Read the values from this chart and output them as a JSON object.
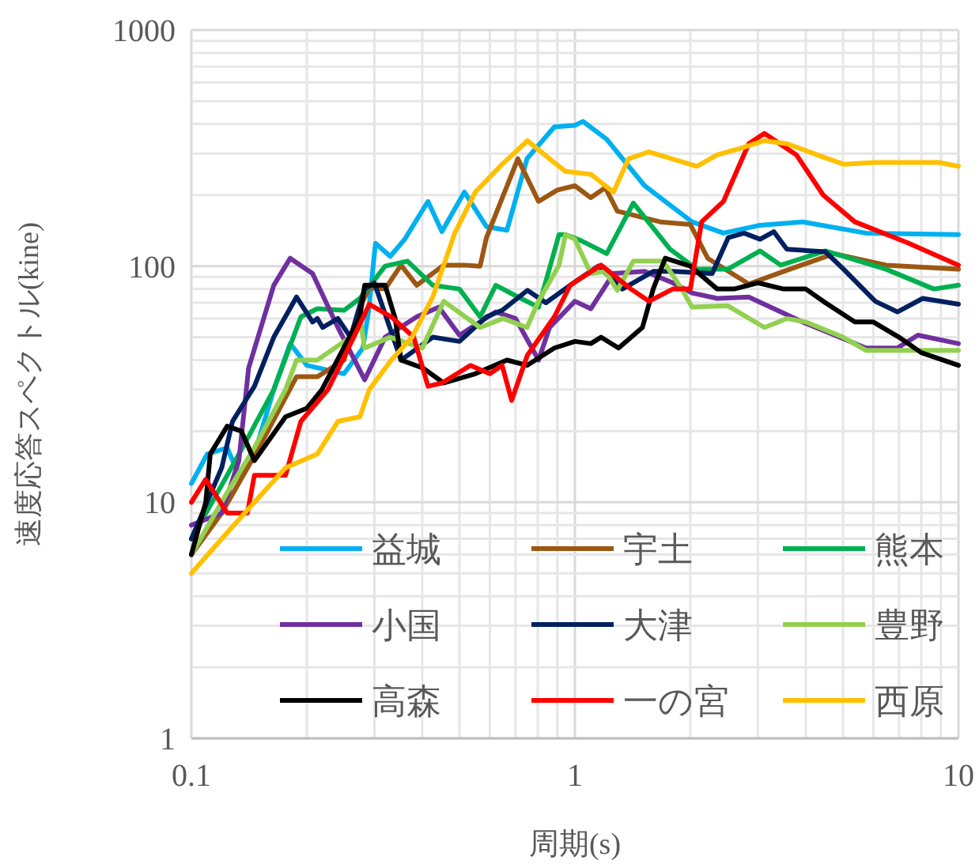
{
  "chart_data": {
    "type": "line",
    "xlabel": "周期(s)",
    "ylabel": "速度応答スペクトル(kine)",
    "log": "xy",
    "grid": true,
    "legend": "bottom",
    "line_style": "solid",
    "marker": "none",
    "xlim": [
      0.1,
      10
    ],
    "ylim": [
      1,
      1000
    ],
    "xticks": [
      0.1,
      1,
      10
    ],
    "yticks": [
      1,
      10,
      100,
      1000
    ],
    "series": [
      {
        "name": "益城",
        "color": "#00b0f0",
        "x": [
          0.1,
          0.11,
          0.124,
          0.133,
          0.146,
          0.164,
          0.181,
          0.2,
          0.25,
          0.28,
          0.29,
          0.302,
          0.33,
          0.36,
          0.414,
          0.45,
          0.515,
          0.588,
          0.665,
          0.75,
          0.884,
          1.0,
          1.05,
          1.21,
          1.52,
          2.02,
          2.44,
          3.04,
          3.92,
          5.74,
          10
        ],
        "values": [
          12,
          16,
          17,
          13,
          16,
          30,
          47,
          38,
          35,
          45,
          65,
          125,
          110,
          130,
          188,
          140,
          206,
          147,
          142,
          285,
          389,
          395,
          410,
          345,
          219,
          154,
          138,
          149,
          154,
          138,
          136
        ]
      },
      {
        "name": "宇土",
        "color": "#9c5712",
        "x": [
          0.1,
          0.12,
          0.15,
          0.188,
          0.213,
          0.25,
          0.275,
          0.291,
          0.32,
          0.352,
          0.387,
          0.455,
          0.515,
          0.566,
          0.588,
          0.71,
          0.804,
          0.9,
          1.0,
          1.1,
          1.2,
          1.29,
          1.67,
          2.0,
          2.22,
          2.84,
          3.5,
          4.74,
          6.48,
          10
        ],
        "values": [
          6,
          9,
          17,
          34,
          34,
          40,
          67,
          81,
          80,
          101,
          83,
          101,
          101,
          100,
          132,
          285,
          188,
          210,
          219,
          195,
          215,
          171,
          154,
          150,
          108,
          84,
          95,
          113,
          101,
          97
        ]
      },
      {
        "name": "熊本",
        "color": "#00b050",
        "x": [
          0.1,
          0.124,
          0.141,
          0.164,
          0.193,
          0.213,
          0.25,
          0.275,
          0.32,
          0.366,
          0.426,
          0.5,
          0.566,
          0.622,
          0.7,
          0.804,
          0.909,
          0.945,
          1.04,
          1.21,
          1.42,
          1.77,
          2.08,
          2.5,
          3.04,
          3.44,
          4.5,
          6.48,
          8.63,
          10
        ],
        "values": [
          7,
          13,
          19,
          30,
          61,
          66,
          65,
          73,
          100,
          105,
          83,
          80,
          61,
          83,
          75,
          67,
          136,
          136,
          128,
          113,
          185,
          118,
          97,
          97,
          116,
          101,
          116,
          97,
          80,
          83
        ]
      },
      {
        "name": "小国",
        "color": "#7030a0",
        "x": [
          0.1,
          0.12,
          0.133,
          0.141,
          0.164,
          0.181,
          0.207,
          0.241,
          0.283,
          0.32,
          0.387,
          0.442,
          0.5,
          0.622,
          0.7,
          0.804,
          0.859,
          1.0,
          1.1,
          1.26,
          1.52,
          1.8,
          2.02,
          2.35,
          2.84,
          3.92,
          5.74,
          6.93,
          7.84,
          10
        ],
        "values": [
          8,
          9,
          15,
          37,
          83,
          108,
          93,
          55,
          33,
          50,
          61,
          67,
          51,
          64,
          60,
          40,
          55,
          71,
          66,
          93,
          95,
          85,
          77,
          73,
          74,
          58,
          45,
          45,
          51,
          47
        ]
      },
      {
        "name": "大津",
        "color": "#002060",
        "x": [
          0.1,
          0.12,
          0.128,
          0.146,
          0.164,
          0.188,
          0.207,
          0.213,
          0.22,
          0.241,
          0.26,
          0.283,
          0.3,
          0.352,
          0.426,
          0.5,
          0.588,
          0.646,
          0.752,
          0.84,
          0.972,
          1.15,
          1.33,
          1.6,
          1.8,
          2.28,
          2.51,
          2.76,
          3.04,
          3.3,
          3.57,
          4.5,
          5.02,
          6.07,
          6.93,
          8.07,
          10
        ],
        "values": [
          7,
          14,
          22,
          31,
          50,
          74,
          58,
          60,
          55,
          60,
          50,
          80,
          85,
          40,
          50,
          48,
          61,
          65,
          79,
          70,
          83,
          100,
          80,
          95,
          95,
          93,
          132,
          138,
          130,
          140,
          118,
          115,
          97,
          71,
          64,
          73,
          69
        ]
      },
      {
        "name": "豊野",
        "color": "#92d050",
        "x": [
          0.1,
          0.124,
          0.146,
          0.176,
          0.188,
          0.213,
          0.26,
          0.275,
          0.283,
          0.33,
          0.4,
          0.455,
          0.566,
          0.65,
          0.75,
          0.8,
          0.909,
          0.945,
          1.0,
          1.1,
          1.2,
          1.29,
          1.42,
          1.7,
          1.9,
          2.02,
          2.5,
          3.12,
          3.57,
          4.0,
          5.0,
          5.74,
          10
        ],
        "values": [
          6,
          11,
          17,
          30,
          40,
          40,
          50,
          61,
          45,
          50,
          45,
          71,
          55,
          60,
          55,
          70,
          101,
          136,
          130,
          93,
          95,
          79,
          105,
          105,
          80,
          67,
          68,
          55,
          60,
          58,
          50,
          44,
          44
        ]
      },
      {
        "name": "高森",
        "color": "#000000",
        "x": [
          0.1,
          0.109,
          0.112,
          0.124,
          0.135,
          0.146,
          0.176,
          0.2,
          0.219,
          0.275,
          0.283,
          0.32,
          0.34,
          0.352,
          0.402,
          0.455,
          0.55,
          0.665,
          0.75,
          0.884,
          1.0,
          1.1,
          1.17,
          1.3,
          1.5,
          1.6,
          1.72,
          2.0,
          2.35,
          2.6,
          3.0,
          3.5,
          4.0,
          4.5,
          5.37,
          6.0,
          7.0,
          8.0,
          10
        ],
        "values": [
          6,
          10,
          16,
          21,
          20,
          15,
          23,
          25,
          30,
          61,
          83,
          83,
          60,
          40,
          37,
          32,
          35,
          40,
          38,
          45,
          48,
          47,
          50,
          45,
          55,
          80,
          108,
          100,
          80,
          80,
          85,
          80,
          80,
          70,
          58,
          58,
          50,
          43,
          38
        ]
      },
      {
        "name": "一の宮",
        "color": "#ff0000",
        "x": [
          0.1,
          0.109,
          0.124,
          0.14,
          0.146,
          0.176,
          0.193,
          0.227,
          0.265,
          0.291,
          0.332,
          0.38,
          0.414,
          0.45,
          0.534,
          0.6,
          0.646,
          0.684,
          0.752,
          0.884,
          0.972,
          1.17,
          1.4,
          1.56,
          1.8,
          2.0,
          2.14,
          2.44,
          2.84,
          3.12,
          3.78,
          4.44,
          5.37,
          7.34,
          10
        ],
        "values": [
          10,
          12.5,
          9,
          9,
          13,
          13,
          22,
          30,
          50,
          69,
          61,
          50,
          31,
          32,
          38,
          35,
          38,
          27,
          42,
          61,
          83,
          101,
          80,
          71,
          80,
          80,
          154,
          188,
          330,
          365,
          296,
          200,
          154,
          126,
          101
        ]
      },
      {
        "name": "西原",
        "color": "#ffc000",
        "x": [
          0.1,
          0.12,
          0.146,
          0.176,
          0.213,
          0.241,
          0.275,
          0.291,
          0.332,
          0.376,
          0.426,
          0.486,
          0.55,
          0.646,
          0.752,
          0.859,
          0.945,
          1.1,
          1.26,
          1.38,
          1.56,
          2.08,
          2.35,
          2.69,
          3.12,
          3.57,
          4.44,
          5.02,
          6.07,
          7.34,
          8.88,
          10
        ],
        "values": [
          5,
          7,
          10,
          14,
          16,
          22,
          23,
          30,
          40,
          50,
          74,
          138,
          206,
          270,
          340,
          285,
          252,
          245,
          206,
          285,
          305,
          265,
          296,
          315,
          340,
          330,
          290,
          270,
          275,
          275,
          275,
          265
        ]
      }
    ]
  }
}
